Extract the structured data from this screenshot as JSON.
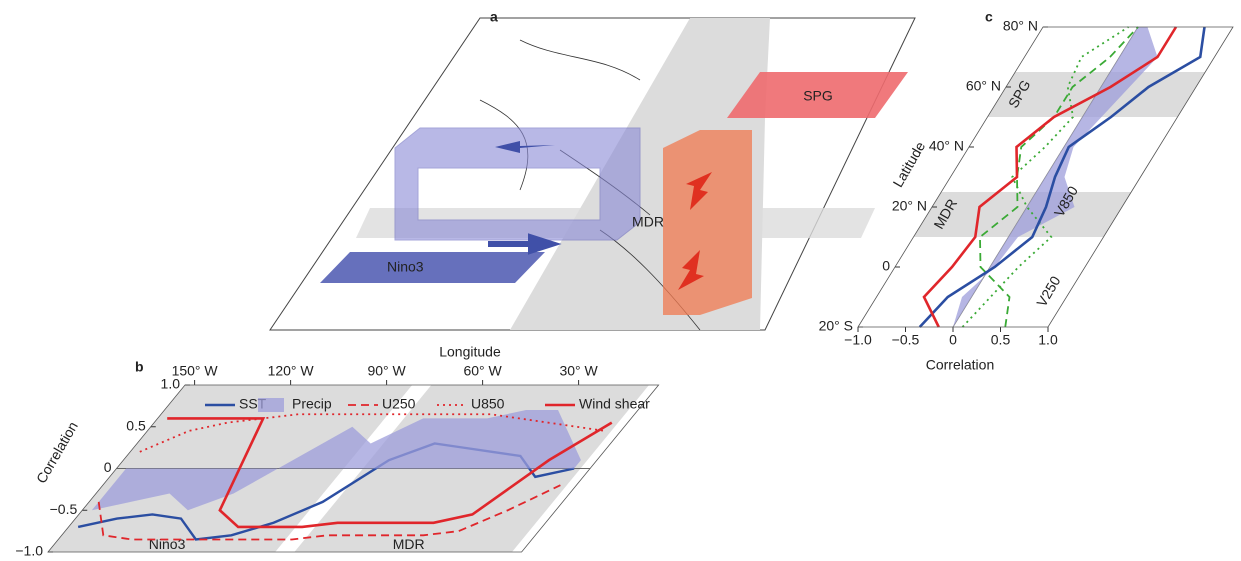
{
  "chart_data": [
    {
      "type": "map",
      "panel_label": "a",
      "regions": [
        "Nino3",
        "MDR",
        "SPG"
      ]
    },
    {
      "type": "line",
      "panel_label": "b",
      "xlabel": "Longitude",
      "ylabel": "Correlation",
      "x": [
        -150,
        -140,
        -130,
        -120,
        -110,
        -100,
        -90,
        -80,
        -70,
        -60,
        -50,
        -40,
        -30,
        -20,
        -10
      ],
      "xlim": [
        -153,
        -5
      ],
      "xticks": [
        {
          "value": -150,
          "label": "150° W"
        },
        {
          "value": -120,
          "label": "120° W"
        },
        {
          "value": -90,
          "label": "90° W"
        },
        {
          "value": -60,
          "label": "60° W"
        },
        {
          "value": -30,
          "label": "30° W"
        }
      ],
      "ylim": [
        -1,
        1
      ],
      "yticks": [
        {
          "value": -1,
          "label": "−1.0"
        },
        {
          "value": -0.5,
          "label": "−0.5"
        },
        0,
        0.5,
        {
          "value": 1,
          "label": "1.0"
        }
      ],
      "bands": [
        {
          "label": "Nino3",
          "xlim": [
            -153,
            -82
          ]
        },
        {
          "label": "MDR",
          "xlim": [
            -76,
            -8
          ]
        }
      ],
      "series": [
        {
          "name": "SST",
          "color": "#2b4ea2",
          "style": "solid",
          "values": [
            -0.7,
            -0.6,
            -0.55,
            -0.6,
            -0.85,
            -0.8,
            -0.65,
            -0.4,
            0.1,
            0.3,
            0.25,
            0.2,
            0.15,
            -0.1,
            0
          ]
        },
        {
          "name": "Precip",
          "color": "#9d9ddb",
          "style": "area",
          "values": [
            -0.5,
            -0.4,
            -0.3,
            -0.5,
            -0.3,
            0.1,
            0.5,
            0.3,
            0.6,
            0.6,
            0.6,
            0.7,
            0.7,
            0.4,
            0.1
          ]
        },
        {
          "name": "U250",
          "color": "#e0262b",
          "style": "dashed",
          "values": [
            -0.4,
            -0.8,
            -0.85,
            -0.85,
            -0.85,
            -0.85,
            -0.85,
            -0.85,
            -0.8,
            -0.8,
            -0.8,
            -0.8,
            -0.75,
            -0.5,
            -0.2
          ]
        },
        {
          "name": "U850",
          "color": "#e0262b",
          "style": "dotted",
          "values": [
            0.2,
            0.45,
            0.55,
            0.6,
            0.65,
            0.65,
            0.65,
            0.65,
            0.65,
            0.65,
            0.65,
            0.6,
            0.55,
            0.5,
            0.45
          ]
        },
        {
          "name": "Wind shear",
          "color": "#e0262b",
          "style": "solid",
          "values": [
            0.6,
            0.6,
            0.6,
            0.6,
            -0.5,
            -0.7,
            -0.7,
            -0.7,
            -0.65,
            -0.65,
            -0.65,
            -0.65,
            -0.55,
            0.1,
            0.55
          ]
        }
      ]
    },
    {
      "type": "line",
      "panel_label": "c",
      "xlabel": "Correlation",
      "ylabel": "Latitude",
      "y": [
        -20,
        -10,
        0,
        10,
        20,
        30,
        40,
        50,
        60,
        70,
        80
      ],
      "xlim": [
        -1,
        1
      ],
      "xticks": [
        {
          "value": -1,
          "label": "−1.0"
        },
        {
          "value": -0.5,
          "label": "−0.5"
        },
        0,
        0.5,
        {
          "value": 1,
          "label": "1.0"
        }
      ],
      "ylim": [
        -20,
        80
      ],
      "yticks": [
        {
          "value": -20,
          "label": "20° S"
        },
        0,
        {
          "value": 20,
          "label": "20° N"
        },
        {
          "value": 40,
          "label": "40° N"
        },
        {
          "value": 60,
          "label": "60° N"
        },
        {
          "value": 80,
          "label": "80° N"
        }
      ],
      "bands": [
        {
          "label": "SPG",
          "ylim": [
            50,
            65
          ]
        },
        {
          "label": "MDR",
          "ylim": [
            10,
            25
          ]
        }
      ],
      "series": [
        {
          "color": "#9d9ddb",
          "style": "area",
          "values": [
            0,
            -0.1,
            0.05,
            0.1,
            0.5,
            0.2,
            0.1,
            0.2,
            0.3,
            0.4,
            0.1
          ]
        },
        {
          "name": "V250",
          "color": "#3aaa35",
          "style": "dashed",
          "values": [
            0.55,
            0.4,
            -0.1,
            -0.3,
            -0.1,
            -0.3,
            -0.45,
            -0.3,
            -0.3,
            -0.1,
            0
          ]
        },
        {
          "name": "V850",
          "color": "#3aaa35",
          "style": "dotted",
          "values": [
            0.1,
            0.2,
            0.3,
            0.45,
            0,
            -0.35,
            -0.2,
            -0.1,
            -0.35,
            -0.4,
            -0.1
          ]
        },
        {
          "color": "#2b4ea2",
          "style": "solid",
          "values": [
            -0.35,
            -0.25,
            0.05,
            0.25,
            0.2,
            0.1,
            0.05,
            0.3,
            0.5,
            0.85,
            0.7
          ]
        },
        {
          "color": "#e0262b",
          "style": "solid",
          "values": [
            -0.15,
            -0.5,
            -0.4,
            -0.35,
            -0.5,
            -0.3,
            -0.5,
            -0.3,
            0.1,
            0.4,
            0.4
          ]
        }
      ]
    }
  ]
}
